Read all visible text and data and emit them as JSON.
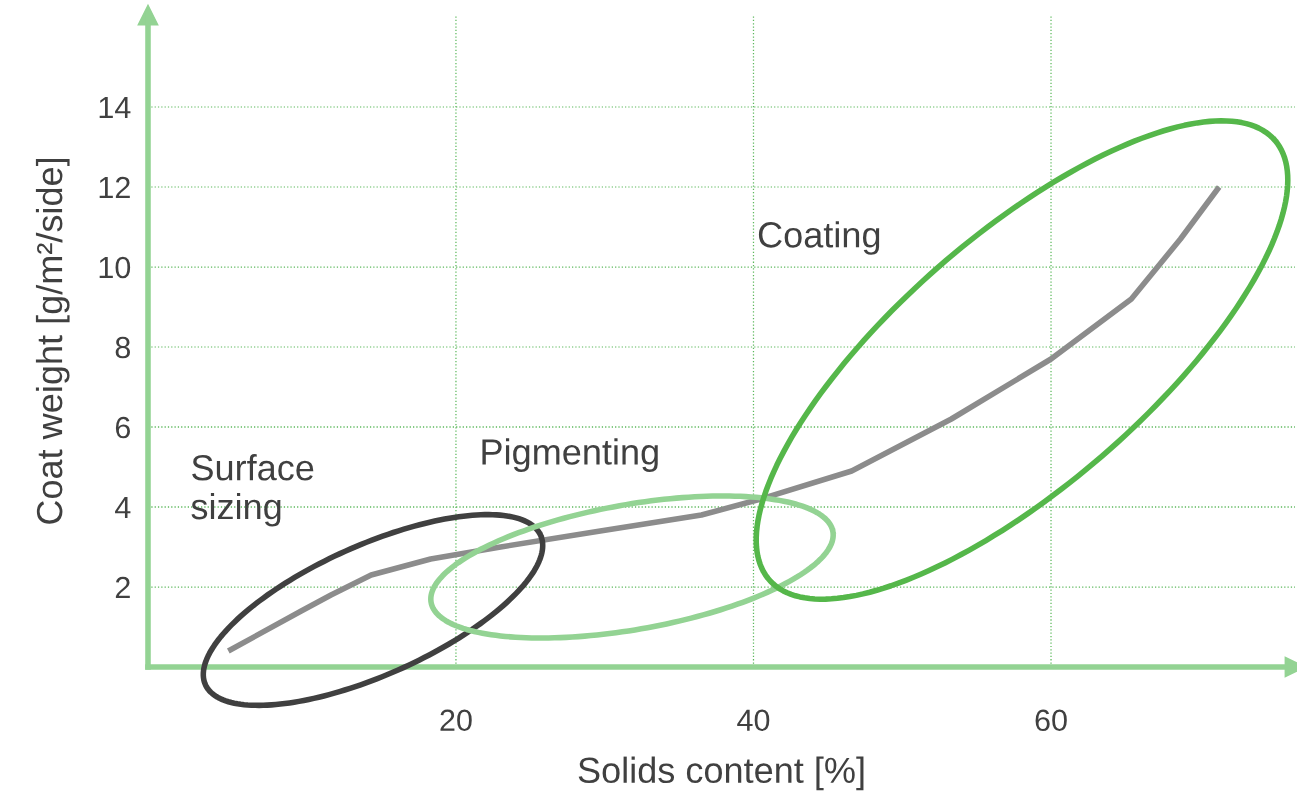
{
  "chart_data": {
    "type": "line",
    "xlabel": "Solids content [%]",
    "ylabel": "Coat weight [g/m²/side]",
    "x": [
      4.7,
      9.6,
      11.6,
      14.3,
      18.3,
      23,
      29.7,
      36.5,
      40.5,
      46.6,
      53.3,
      60,
      65.4,
      68.7,
      71.3
    ],
    "series": [
      {
        "color": "#8c8c8c",
        "values": [
          0.4,
          1.4,
          1.8,
          2.3,
          2.7,
          3.0,
          3.4,
          3.8,
          4.2,
          4.9,
          6.2,
          7.7,
          9.2,
          10.7,
          12.0
        ]
      }
    ],
    "xlim": [
      -0.7,
      76.4
    ],
    "ylim": [
      0,
      16.3
    ],
    "xticks": [
      20,
      40,
      60
    ],
    "yticks": [
      2,
      4,
      6,
      8,
      10,
      12,
      14
    ],
    "grid": true,
    "marker": "none",
    "line_style": "solid",
    "annotations": [
      "Surface\nsizing",
      "Pigmenting",
      "Coating"
    ]
  }
}
